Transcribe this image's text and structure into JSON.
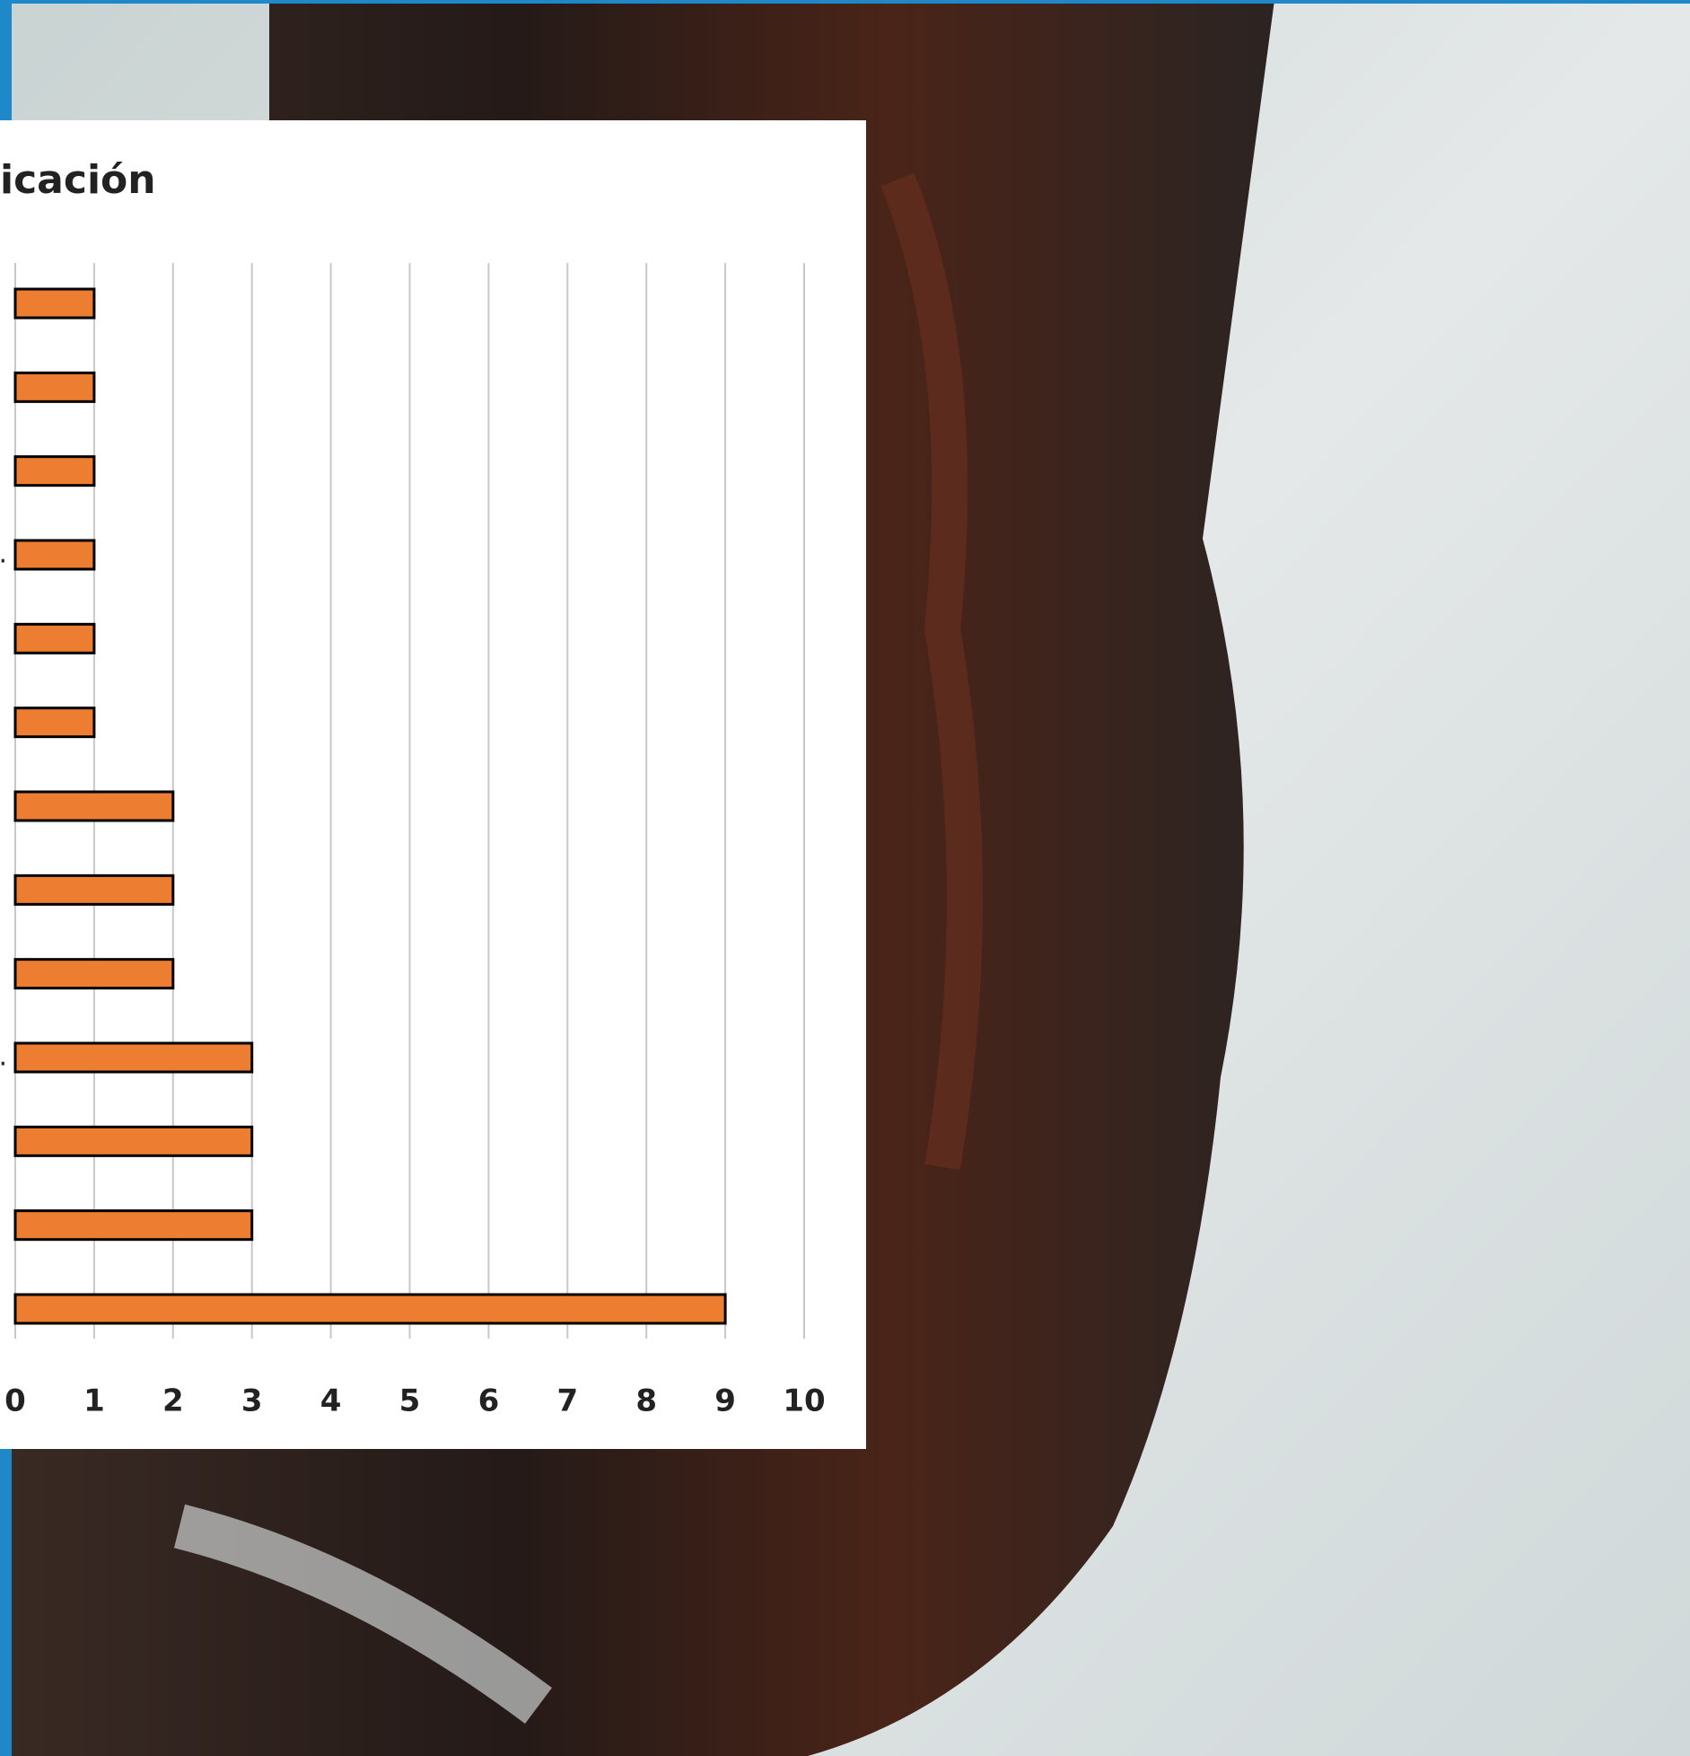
{
  "chart_data": {
    "type": "bar",
    "orientation": "horizontal",
    "title": "icación",
    "categories": [
      null,
      null,
      null,
      ".",
      null,
      null,
      null,
      null,
      null,
      ".",
      null,
      null,
      null
    ],
    "values": [
      1,
      1,
      1,
      1,
      1,
      1,
      2,
      2,
      2,
      3,
      3,
      3,
      9
    ],
    "color": "#ed7d31",
    "xlim": [
      0,
      10
    ],
    "xticks": [
      0,
      1,
      2,
      3,
      4,
      5,
      6,
      7,
      8,
      9,
      10
    ],
    "grid": true
  }
}
